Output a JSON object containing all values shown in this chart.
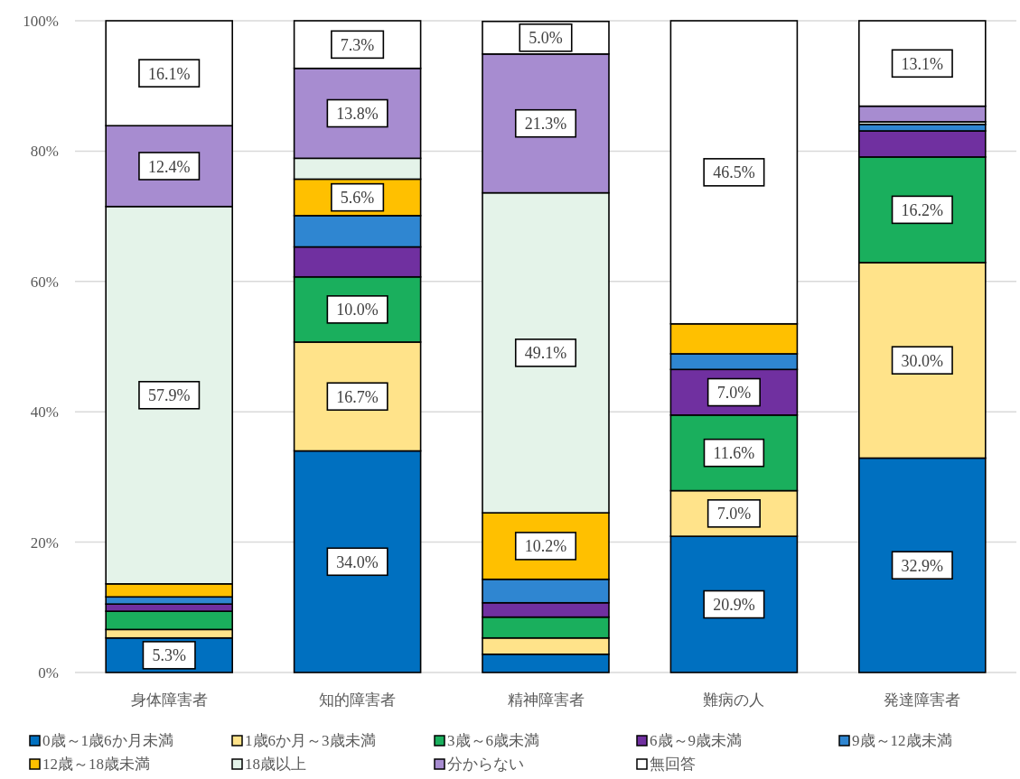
{
  "chart_data": {
    "type": "bar",
    "stacked": true,
    "categories": [
      "身体障害者",
      "知的障害者",
      "精神障害者",
      "難病の人",
      "発達障害者"
    ],
    "ylim": [
      0,
      100
    ],
    "yticks": [
      {
        "value": 0,
        "label": "0%"
      },
      {
        "value": 20,
        "label": "20%"
      },
      {
        "value": 40,
        "label": "40%"
      },
      {
        "value": 60,
        "label": "60%"
      },
      {
        "value": 80,
        "label": "80%"
      },
      {
        "value": 100,
        "label": "100%"
      }
    ],
    "grid": "y",
    "legend": "bottom",
    "series": [
      {
        "name": "0歳～1歳6か月未満",
        "color": "#0070c0",
        "values": [
          5.3,
          34.0,
          2.8,
          20.9,
          32.9
        ],
        "value_labels": [
          "5.3%",
          "34.0%",
          null,
          "20.9%",
          "32.9%"
        ]
      },
      {
        "name": "1歳6か月～3歳未満",
        "color": "#ffe38a",
        "values": [
          1.3,
          16.7,
          2.5,
          7.0,
          30.0
        ],
        "value_labels": [
          null,
          "16.7%",
          null,
          "7.0%",
          "30.0%"
        ]
      },
      {
        "name": "3歳～6歳未満",
        "color": "#1aaf5d",
        "values": [
          2.8,
          10.0,
          3.2,
          11.6,
          16.2
        ],
        "value_labels": [
          null,
          "10.0%",
          null,
          "11.6%",
          "16.2%"
        ]
      },
      {
        "name": "6歳～9歳未満",
        "color": "#7030a0",
        "values": [
          1.1,
          4.6,
          2.2,
          7.0,
          4.0
        ],
        "value_labels": [
          null,
          null,
          null,
          "7.0%",
          null
        ]
      },
      {
        "name": "9歳～12歳未満",
        "color": "#2f86d1",
        "values": [
          1.1,
          4.8,
          3.6,
          2.4,
          1.0
        ],
        "value_labels": [
          null,
          null,
          null,
          null,
          null
        ]
      },
      {
        "name": "12歳～18歳未満",
        "color": "#ffc000",
        "values": [
          2.0,
          5.6,
          10.2,
          4.6,
          null
        ],
        "value_labels": [
          null,
          "5.6%",
          "10.2%",
          null,
          null
        ]
      },
      {
        "name": "18歳以上",
        "color": "#e4f3e9",
        "values": [
          57.9,
          3.2,
          49.1,
          null,
          0.4
        ],
        "value_labels": [
          "57.9%",
          null,
          "49.1%",
          null,
          null
        ]
      },
      {
        "name": "分からない",
        "color": "#a78cd0",
        "values": [
          12.4,
          13.8,
          21.3,
          null,
          2.4
        ],
        "value_labels": [
          "12.4%",
          "13.8%",
          "21.3%",
          null,
          null
        ]
      },
      {
        "name": "無回答",
        "color": "#ffffff",
        "values": [
          16.1,
          7.3,
          5.0,
          46.5,
          13.1
        ],
        "value_labels": [
          "16.1%",
          "7.3%",
          "5.0%",
          "46.5%",
          "13.1%"
        ]
      }
    ]
  }
}
